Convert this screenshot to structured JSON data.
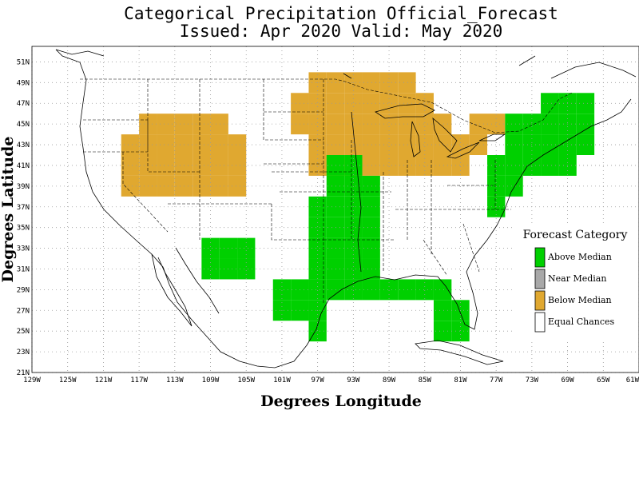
{
  "title": {
    "line1": "Categorical Precipitation Official_Forecast",
    "line2": "Issued: Apr 2020 Valid: May 2020"
  },
  "axes": {
    "xlabel": "Degrees Longitude",
    "ylabel": "Degrees Latitude",
    "x_ticks": [
      "129W",
      "125W",
      "121W",
      "117W",
      "113W",
      "109W",
      "105W",
      "101W",
      "97W",
      "93W",
      "89W",
      "85W",
      "81W",
      "77W",
      "73W",
      "69W",
      "65W",
      "61W"
    ],
    "y_ticks": [
      "21N",
      "23N",
      "25N",
      "27N",
      "29N",
      "31N",
      "33N",
      "35N",
      "37N",
      "39N",
      "41N",
      "43N",
      "45N",
      "47N",
      "49N",
      "51N"
    ],
    "lon_range": [
      -129,
      -61
    ],
    "lat_range": [
      21,
      52.5
    ],
    "grid": "dotted"
  },
  "legend": {
    "title": "Forecast Category",
    "placement": "right",
    "items": [
      {
        "label": "Above Median",
        "color": "#00d000"
      },
      {
        "label": "Near Median",
        "color": "#a8a8a8"
      },
      {
        "label": "Below Median",
        "color": "#e0a830"
      },
      {
        "label": "Equal Chances",
        "color": "#ffffff"
      }
    ]
  },
  "map_data": {
    "cell_deg": 2,
    "category_colors": {
      "above": "#00d000",
      "below": "#e0a830"
    },
    "cells": [
      {
        "lon": -118,
        "lat": 39,
        "cat": "below"
      },
      {
        "lon": -116,
        "lat": 39,
        "cat": "below"
      },
      {
        "lon": -114,
        "lat": 39,
        "cat": "below"
      },
      {
        "lon": -112,
        "lat": 39,
        "cat": "below"
      },
      {
        "lon": -110,
        "lat": 39,
        "cat": "below"
      },
      {
        "lon": -108,
        "lat": 39,
        "cat": "below"
      },
      {
        "lon": -106,
        "lat": 39,
        "cat": "below"
      },
      {
        "lon": -118,
        "lat": 41,
        "cat": "below"
      },
      {
        "lon": -116,
        "lat": 41,
        "cat": "below"
      },
      {
        "lon": -114,
        "lat": 41,
        "cat": "below"
      },
      {
        "lon": -112,
        "lat": 41,
        "cat": "below"
      },
      {
        "lon": -110,
        "lat": 41,
        "cat": "below"
      },
      {
        "lon": -108,
        "lat": 41,
        "cat": "below"
      },
      {
        "lon": -106,
        "lat": 41,
        "cat": "below"
      },
      {
        "lon": -118,
        "lat": 43,
        "cat": "below"
      },
      {
        "lon": -116,
        "lat": 43,
        "cat": "below"
      },
      {
        "lon": -114,
        "lat": 43,
        "cat": "below"
      },
      {
        "lon": -112,
        "lat": 43,
        "cat": "below"
      },
      {
        "lon": -110,
        "lat": 43,
        "cat": "below"
      },
      {
        "lon": -108,
        "lat": 43,
        "cat": "below"
      },
      {
        "lon": -106,
        "lat": 43,
        "cat": "below"
      },
      {
        "lon": -116,
        "lat": 45,
        "cat": "below"
      },
      {
        "lon": -114,
        "lat": 45,
        "cat": "below"
      },
      {
        "lon": -112,
        "lat": 45,
        "cat": "below"
      },
      {
        "lon": -110,
        "lat": 45,
        "cat": "below"
      },
      {
        "lon": -108,
        "lat": 45,
        "cat": "below"
      },
      {
        "lon": -97,
        "lat": 41,
        "cat": "below"
      },
      {
        "lon": -95,
        "lat": 41,
        "cat": "below"
      },
      {
        "lon": -93,
        "lat": 41,
        "cat": "below"
      },
      {
        "lon": -91,
        "lat": 41,
        "cat": "below"
      },
      {
        "lon": -89,
        "lat": 41,
        "cat": "below"
      },
      {
        "lon": -87,
        "lat": 41,
        "cat": "below"
      },
      {
        "lon": -85,
        "lat": 41,
        "cat": "below"
      },
      {
        "lon": -83,
        "lat": 41,
        "cat": "below"
      },
      {
        "lon": -81,
        "lat": 41,
        "cat": "below"
      },
      {
        "lon": -97,
        "lat": 43,
        "cat": "below"
      },
      {
        "lon": -95,
        "lat": 43,
        "cat": "below"
      },
      {
        "lon": -93,
        "lat": 43,
        "cat": "below"
      },
      {
        "lon": -91,
        "lat": 43,
        "cat": "below"
      },
      {
        "lon": -89,
        "lat": 43,
        "cat": "below"
      },
      {
        "lon": -87,
        "lat": 43,
        "cat": "below"
      },
      {
        "lon": -85,
        "lat": 43,
        "cat": "below"
      },
      {
        "lon": -83,
        "lat": 43,
        "cat": "below"
      },
      {
        "lon": -81,
        "lat": 43,
        "cat": "below"
      },
      {
        "lon": -79,
        "lat": 43,
        "cat": "below"
      },
      {
        "lon": -99,
        "lat": 45,
        "cat": "below"
      },
      {
        "lon": -97,
        "lat": 45,
        "cat": "below"
      },
      {
        "lon": -95,
        "lat": 45,
        "cat": "below"
      },
      {
        "lon": -93,
        "lat": 45,
        "cat": "below"
      },
      {
        "lon": -91,
        "lat": 45,
        "cat": "below"
      },
      {
        "lon": -89,
        "lat": 45,
        "cat": "below"
      },
      {
        "lon": -87,
        "lat": 45,
        "cat": "below"
      },
      {
        "lon": -85,
        "lat": 45,
        "cat": "below"
      },
      {
        "lon": -83,
        "lat": 45,
        "cat": "below"
      },
      {
        "lon": -79,
        "lat": 45,
        "cat": "below"
      },
      {
        "lon": -77,
        "lat": 45,
        "cat": "below"
      },
      {
        "lon": -99,
        "lat": 47,
        "cat": "below"
      },
      {
        "lon": -97,
        "lat": 47,
        "cat": "below"
      },
      {
        "lon": -95,
        "lat": 47,
        "cat": "below"
      },
      {
        "lon": -93,
        "lat": 47,
        "cat": "below"
      },
      {
        "lon": -91,
        "lat": 47,
        "cat": "below"
      },
      {
        "lon": -89,
        "lat": 47,
        "cat": "below"
      },
      {
        "lon": -87,
        "lat": 47,
        "cat": "below"
      },
      {
        "lon": -85,
        "lat": 47,
        "cat": "below"
      },
      {
        "lon": -97,
        "lat": 49,
        "cat": "below"
      },
      {
        "lon": -95,
        "lat": 49,
        "cat": "below"
      },
      {
        "lon": -93,
        "lat": 49,
        "cat": "below"
      },
      {
        "lon": -91,
        "lat": 49,
        "cat": "below"
      },
      {
        "lon": -89,
        "lat": 49,
        "cat": "below"
      },
      {
        "lon": -87,
        "lat": 49,
        "cat": "below"
      },
      {
        "lon": -109,
        "lat": 31,
        "cat": "above"
      },
      {
        "lon": -107,
        "lat": 31,
        "cat": "above"
      },
      {
        "lon": -105,
        "lat": 31,
        "cat": "above"
      },
      {
        "lon": -109,
        "lat": 33,
        "cat": "above"
      },
      {
        "lon": -107,
        "lat": 33,
        "cat": "above"
      },
      {
        "lon": -105,
        "lat": 33,
        "cat": "above"
      },
      {
        "lon": -97,
        "lat": 25,
        "cat": "above"
      },
      {
        "lon": -101,
        "lat": 27,
        "cat": "above"
      },
      {
        "lon": -99,
        "lat": 27,
        "cat": "above"
      },
      {
        "lon": -97,
        "lat": 27,
        "cat": "above"
      },
      {
        "lon": -101,
        "lat": 29,
        "cat": "above"
      },
      {
        "lon": -99,
        "lat": 29,
        "cat": "above"
      },
      {
        "lon": -97,
        "lat": 29,
        "cat": "above"
      },
      {
        "lon": -95,
        "lat": 29,
        "cat": "above"
      },
      {
        "lon": -93,
        "lat": 29,
        "cat": "above"
      },
      {
        "lon": -91,
        "lat": 29,
        "cat": "above"
      },
      {
        "lon": -89,
        "lat": 29,
        "cat": "above"
      },
      {
        "lon": -87,
        "lat": 29,
        "cat": "above"
      },
      {
        "lon": -85,
        "lat": 29,
        "cat": "above"
      },
      {
        "lon": -97,
        "lat": 31,
        "cat": "above"
      },
      {
        "lon": -95,
        "lat": 31,
        "cat": "above"
      },
      {
        "lon": -93,
        "lat": 31,
        "cat": "above"
      },
      {
        "lon": -91,
        "lat": 31,
        "cat": "above"
      },
      {
        "lon": -97,
        "lat": 33,
        "cat": "above"
      },
      {
        "lon": -95,
        "lat": 33,
        "cat": "above"
      },
      {
        "lon": -93,
        "lat": 33,
        "cat": "above"
      },
      {
        "lon": -91,
        "lat": 33,
        "cat": "above"
      },
      {
        "lon": -97,
        "lat": 35,
        "cat": "above"
      },
      {
        "lon": -95,
        "lat": 35,
        "cat": "above"
      },
      {
        "lon": -93,
        "lat": 35,
        "cat": "above"
      },
      {
        "lon": -91,
        "lat": 35,
        "cat": "above"
      },
      {
        "lon": -97,
        "lat": 37,
        "cat": "above"
      },
      {
        "lon": -95,
        "lat": 37,
        "cat": "above"
      },
      {
        "lon": -93,
        "lat": 37,
        "cat": "above"
      },
      {
        "lon": -91,
        "lat": 37,
        "cat": "above"
      },
      {
        "lon": -95,
        "lat": 39,
        "cat": "above"
      },
      {
        "lon": -93,
        "lat": 39,
        "cat": "above"
      },
      {
        "lon": -91,
        "lat": 39,
        "cat": "above"
      },
      {
        "lon": -95,
        "lat": 41,
        "cat": "above"
      },
      {
        "lon": -93,
        "lat": 41,
        "cat": "above"
      },
      {
        "lon": -83,
        "lat": 25,
        "cat": "above"
      },
      {
        "lon": -81,
        "lat": 25,
        "cat": "above"
      },
      {
        "lon": -83,
        "lat": 27,
        "cat": "above"
      },
      {
        "lon": -81,
        "lat": 27,
        "cat": "above"
      },
      {
        "lon": -83,
        "lat": 29,
        "cat": "above"
      },
      {
        "lon": -77,
        "lat": 37,
        "cat": "above"
      },
      {
        "lon": -77,
        "lat": 39,
        "cat": "above"
      },
      {
        "lon": -75,
        "lat": 39,
        "cat": "above"
      },
      {
        "lon": -77,
        "lat": 41,
        "cat": "above"
      },
      {
        "lon": -75,
        "lat": 41,
        "cat": "above"
      },
      {
        "lon": -73,
        "lat": 41,
        "cat": "above"
      },
      {
        "lon": -71,
        "lat": 41,
        "cat": "above"
      },
      {
        "lon": -69,
        "lat": 41,
        "cat": "above"
      },
      {
        "lon": -75,
        "lat": 43,
        "cat": "above"
      },
      {
        "lon": -73,
        "lat": 43,
        "cat": "above"
      },
      {
        "lon": -71,
        "lat": 43,
        "cat": "above"
      },
      {
        "lon": -69,
        "lat": 43,
        "cat": "above"
      },
      {
        "lon": -67,
        "lat": 43,
        "cat": "above"
      },
      {
        "lon": -75,
        "lat": 45,
        "cat": "above"
      },
      {
        "lon": -73,
        "lat": 45,
        "cat": "above"
      },
      {
        "lon": -71,
        "lat": 45,
        "cat": "above"
      },
      {
        "lon": -69,
        "lat": 45,
        "cat": "above"
      },
      {
        "lon": -67,
        "lat": 45,
        "cat": "above"
      },
      {
        "lon": -71,
        "lat": 47,
        "cat": "above"
      },
      {
        "lon": -69,
        "lat": 47,
        "cat": "above"
      },
      {
        "lon": -67,
        "lat": 47,
        "cat": "above"
      }
    ]
  }
}
